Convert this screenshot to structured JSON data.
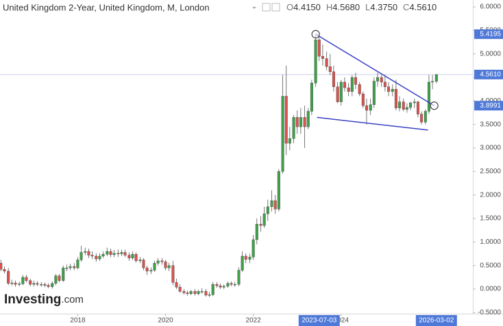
{
  "chart_data": {
    "type": "candlestick",
    "title": "United Kingdom 2-Year, United Kingdom, M, London",
    "ohlc_header": [
      {
        "label": "O",
        "value": "4.4150"
      },
      {
        "label": "H",
        "value": "4.5680"
      },
      {
        "label": "L",
        "value": "4.3750"
      },
      {
        "label": "C",
        "value": "4.5610"
      }
    ],
    "watermark": {
      "brand": "Investing",
      "suffix": ".com"
    },
    "up_color": "#3fa14a",
    "down_color": "#d9534f",
    "x": [
      2016.25,
      2016.33,
      2016.42,
      2016.5,
      2016.58,
      2016.67,
      2016.75,
      2016.83,
      2016.92,
      2017,
      2017.08,
      2017.17,
      2017.25,
      2017.33,
      2017.42,
      2017.5,
      2017.58,
      2017.67,
      2017.75,
      2017.83,
      2017.92,
      2018,
      2018.08,
      2018.17,
      2018.25,
      2018.33,
      2018.42,
      2018.5,
      2018.58,
      2018.67,
      2018.75,
      2018.83,
      2018.92,
      2019,
      2019.08,
      2019.17,
      2019.25,
      2019.33,
      2019.42,
      2019.5,
      2019.58,
      2019.67,
      2019.75,
      2019.83,
      2019.92,
      2020,
      2020.08,
      2020.17,
      2020.25,
      2020.33,
      2020.42,
      2020.5,
      2020.58,
      2020.67,
      2020.75,
      2020.83,
      2020.92,
      2021,
      2021.08,
      2021.17,
      2021.25,
      2021.33,
      2021.42,
      2021.5,
      2021.58,
      2021.67,
      2021.75,
      2021.83,
      2021.92,
      2022,
      2022.08,
      2022.17,
      2022.25,
      2022.33,
      2022.42,
      2022.5,
      2022.58,
      2022.67,
      2022.75,
      2022.83,
      2022.92,
      2023,
      2023.08,
      2023.17,
      2023.25,
      2023.33,
      2023.42,
      2023.5,
      2023.58,
      2023.67,
      2023.75,
      2023.83,
      2023.92,
      2024,
      2024.08,
      2024.17,
      2024.25,
      2024.33,
      2024.42,
      2024.5,
      2024.58,
      2024.67,
      2024.75,
      2024.83,
      2024.92,
      2025,
      2025.08,
      2025.17,
      2025.25,
      2025.33,
      2025.42,
      2025.5,
      2025.58,
      2025.67,
      2025.75,
      2025.83,
      2025.92,
      2026,
      2026.08,
      2026.17
    ],
    "open": [
      0.55,
      0.42,
      0.38,
      0.12,
      0.13,
      0.1,
      0.11,
      0.25,
      0.18,
      0.1,
      0.12,
      0.1,
      0.1,
      0.08,
      0.05,
      0.12,
      0.28,
      0.18,
      0.45,
      0.45,
      0.48,
      0.45,
      0.62,
      0.78,
      0.8,
      0.72,
      0.7,
      0.64,
      0.7,
      0.74,
      0.8,
      0.73,
      0.76,
      0.75,
      0.78,
      0.72,
      0.66,
      0.74,
      0.6,
      0.62,
      0.45,
      0.38,
      0.4,
      0.55,
      0.6,
      0.58,
      0.45,
      0.5,
      0.14,
      0.04,
      -0.05,
      -0.08,
      -0.1,
      -0.05,
      -0.1,
      -0.05,
      -0.05,
      -0.13,
      -0.12,
      0.1,
      0.07,
      0.04,
      0.06,
      0.12,
      0.1,
      0.1,
      0.4,
      0.7,
      0.63,
      0.68,
      1.05,
      1.38,
      1.35,
      1.6,
      1.75,
      1.88,
      1.7,
      2.5,
      4.1,
      3.1,
      3.2,
      3.65,
      3.45,
      3.65,
      3.45,
      3.78,
      4.38,
      5.3,
      4.95,
      4.9,
      4.73,
      4.62,
      4.3,
      3.98,
      4.4,
      4.28,
      4.2,
      4.5,
      4.35,
      4.15,
      3.9,
      3.8,
      3.92,
      4.42,
      4.5,
      4.4,
      4.3,
      4.2,
      4.25,
      3.85,
      3.98,
      3.82,
      3.86,
      3.96,
      3.98,
      3.72,
      3.55,
      3.78,
      4.4,
      4.415
    ],
    "high": [
      0.62,
      0.48,
      0.45,
      0.2,
      0.18,
      0.16,
      0.3,
      0.3,
      0.22,
      0.18,
      0.17,
      0.15,
      0.14,
      0.12,
      0.16,
      0.32,
      0.32,
      0.5,
      0.52,
      0.54,
      0.55,
      0.68,
      0.92,
      0.88,
      0.86,
      0.8,
      0.76,
      0.76,
      0.8,
      0.88,
      0.86,
      0.83,
      0.84,
      0.84,
      0.84,
      0.78,
      0.8,
      0.78,
      0.68,
      0.66,
      0.5,
      0.46,
      0.6,
      0.66,
      0.66,
      0.62,
      0.56,
      0.6,
      0.22,
      0.1,
      0.0,
      -0.03,
      -0.02,
      0.0,
      -0.02,
      0.02,
      0.0,
      -0.06,
      0.15,
      0.15,
      0.12,
      0.1,
      0.16,
      0.16,
      0.15,
      0.46,
      0.8,
      0.76,
      0.75,
      1.15,
      1.5,
      1.55,
      1.75,
      1.9,
      2.1,
      2.0,
      2.55,
      4.55,
      4.75,
      3.45,
      3.7,
      3.8,
      3.85,
      3.9,
      3.85,
      4.45,
      5.42,
      5.45,
      5.2,
      5.05,
      5.0,
      4.75,
      4.4,
      4.45,
      4.5,
      4.38,
      4.55,
      4.6,
      4.4,
      4.2,
      4.05,
      4.05,
      4.5,
      4.6,
      4.55,
      4.55,
      4.4,
      4.35,
      4.45,
      4.1,
      4.05,
      3.95,
      3.98,
      4.05,
      4.0,
      3.78,
      3.82,
      4.55,
      4.55,
      4.568
    ],
    "low": [
      0.38,
      0.33,
      0.08,
      0.07,
      0.05,
      0.06,
      0.08,
      0.14,
      0.06,
      0.05,
      0.06,
      0.05,
      0.04,
      0.02,
      0.01,
      0.08,
      0.14,
      0.15,
      0.38,
      0.4,
      0.4,
      0.42,
      0.58,
      0.72,
      0.66,
      0.64,
      0.58,
      0.6,
      0.66,
      0.7,
      0.68,
      0.68,
      0.68,
      0.7,
      0.68,
      0.6,
      0.62,
      0.56,
      0.55,
      0.4,
      0.3,
      0.32,
      0.36,
      0.5,
      0.52,
      0.4,
      0.38,
      0.08,
      0.0,
      -0.08,
      -0.12,
      -0.14,
      -0.13,
      -0.14,
      -0.13,
      -0.1,
      -0.16,
      -0.17,
      -0.15,
      0.03,
      0.0,
      0.0,
      0.03,
      0.06,
      0.05,
      0.06,
      0.36,
      0.55,
      0.55,
      0.62,
      0.95,
      1.22,
      1.3,
      1.45,
      1.65,
      1.6,
      1.65,
      2.45,
      2.85,
      2.95,
      3.1,
      3.3,
      3.3,
      3.0,
      3.4,
      3.7,
      4.3,
      4.85,
      4.75,
      4.65,
      4.55,
      4.2,
      3.95,
      3.9,
      4.2,
      4.1,
      4.1,
      4.25,
      4.1,
      3.85,
      3.5,
      3.7,
      3.85,
      4.3,
      4.3,
      4.2,
      4.1,
      4.1,
      3.8,
      3.78,
      3.78,
      3.75,
      3.8,
      3.85,
      3.65,
      3.5,
      3.5,
      3.72,
      4.25,
      4.375
    ],
    "close": [
      0.42,
      0.38,
      0.12,
      0.13,
      0.1,
      0.11,
      0.25,
      0.18,
      0.1,
      0.12,
      0.1,
      0.1,
      0.08,
      0.05,
      0.12,
      0.28,
      0.18,
      0.45,
      0.45,
      0.48,
      0.45,
      0.62,
      0.78,
      0.8,
      0.72,
      0.7,
      0.64,
      0.7,
      0.74,
      0.8,
      0.73,
      0.76,
      0.75,
      0.78,
      0.72,
      0.66,
      0.74,
      0.6,
      0.62,
      0.45,
      0.38,
      0.4,
      0.55,
      0.6,
      0.58,
      0.45,
      0.5,
      0.14,
      0.04,
      -0.05,
      -0.08,
      -0.1,
      -0.05,
      -0.1,
      -0.05,
      -0.05,
      -0.13,
      -0.12,
      0.1,
      0.07,
      0.04,
      0.06,
      0.12,
      0.1,
      0.1,
      0.4,
      0.7,
      0.63,
      0.68,
      1.05,
      1.38,
      1.35,
      1.6,
      1.75,
      1.88,
      1.7,
      2.5,
      4.1,
      3.1,
      3.2,
      3.65,
      3.45,
      3.65,
      3.45,
      3.78,
      4.38,
      5.3,
      4.95,
      4.9,
      4.73,
      4.62,
      4.3,
      3.98,
      4.4,
      4.28,
      4.2,
      4.5,
      4.35,
      4.15,
      3.9,
      3.8,
      3.92,
      4.42,
      4.5,
      4.4,
      4.3,
      4.2,
      4.25,
      3.85,
      3.98,
      3.82,
      3.86,
      3.96,
      3.98,
      3.72,
      3.55,
      3.78,
      4.4,
      4.415,
      4.561
    ],
    "xlim": [
      2016.23,
      2027.0
    ],
    "ylim": [
      -0.524,
      6.146
    ],
    "xticks": [
      2018,
      2020,
      2022,
      2024
    ],
    "highlighted_xticks": [
      {
        "value": 2023.5,
        "label": "2023-07-03"
      },
      {
        "value": 2026.17,
        "label": "2026-03-02"
      }
    ],
    "yticks": [
      {
        "value": -0.5,
        "label": "-0.5000"
      },
      {
        "value": 0,
        "label": "0.0000"
      },
      {
        "value": 0.5,
        "label": "0.5000"
      },
      {
        "value": 1,
        "label": "1.0000"
      },
      {
        "value": 1.5,
        "label": "1.5000"
      },
      {
        "value": 2,
        "label": "2.0000"
      },
      {
        "value": 2.5,
        "label": "2.5000"
      },
      {
        "value": 3,
        "label": "3.0000"
      },
      {
        "value": 3.5,
        "label": "3.5000"
      },
      {
        "value": 4,
        "label": "4.0000"
      },
      {
        "value": 4.5,
        "label": "4.5000"
      },
      {
        "value": 5,
        "label": "5.0000"
      },
      {
        "value": 5.5,
        "label": "5.5000"
      },
      {
        "value": 6,
        "label": "6.0000"
      }
    ],
    "last_price": {
      "value": 4.561,
      "label": "4.5610"
    },
    "trendlines": [
      {
        "x": [
          2023.42,
          2026.12
        ],
        "y": [
          5.4195,
          3.8991
        ],
        "color": "#3b3fc4",
        "endpoint_labels": true
      },
      {
        "x": [
          2023.45,
          2025.98
        ],
        "y": [
          3.65,
          3.38
        ],
        "color": "#3b3fc4",
        "endpoint_labels": false
      }
    ],
    "tag_color": "#4f79d8"
  }
}
